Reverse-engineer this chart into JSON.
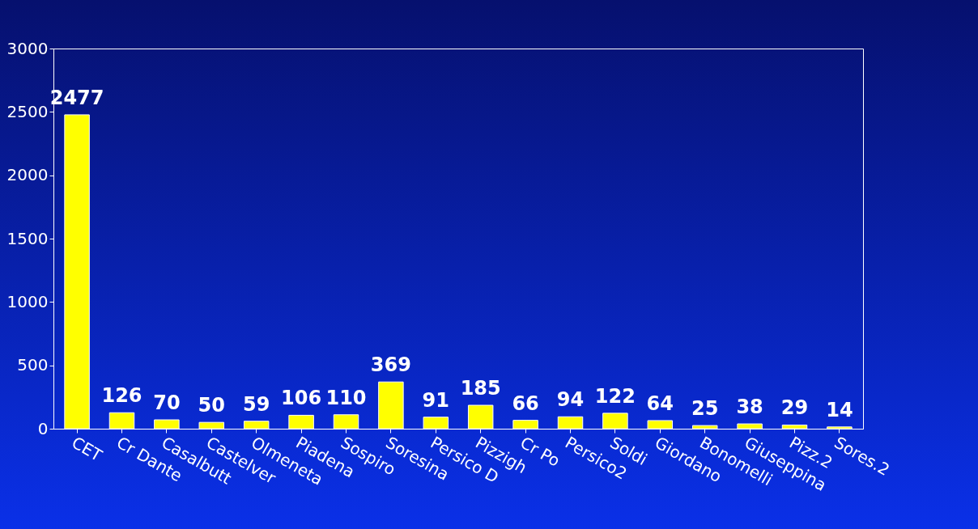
{
  "chart_data": {
    "type": "bar",
    "categories": [
      "CET",
      "Cr Dante",
      "Casalbutt",
      "Castelver",
      "Olmeneta",
      "Piadena",
      "Sospiro",
      "Soresina",
      "Persico D",
      "Pizzigh",
      "Cr Po",
      "Persico2",
      "Soldi",
      "Giordano",
      "Bonomelli",
      "Giuseppina",
      "Pizz.2",
      "Sores.2"
    ],
    "values": [
      2477,
      126,
      70,
      50,
      59,
      106,
      110,
      369,
      91,
      185,
      66,
      94,
      122,
      64,
      25,
      38,
      29,
      14
    ],
    "color": "#ffff00",
    "ylim": [
      0,
      3000
    ],
    "yticks": [
      0,
      500,
      1000,
      1500,
      2000,
      2500,
      3000
    ],
    "data_labels": true
  }
}
